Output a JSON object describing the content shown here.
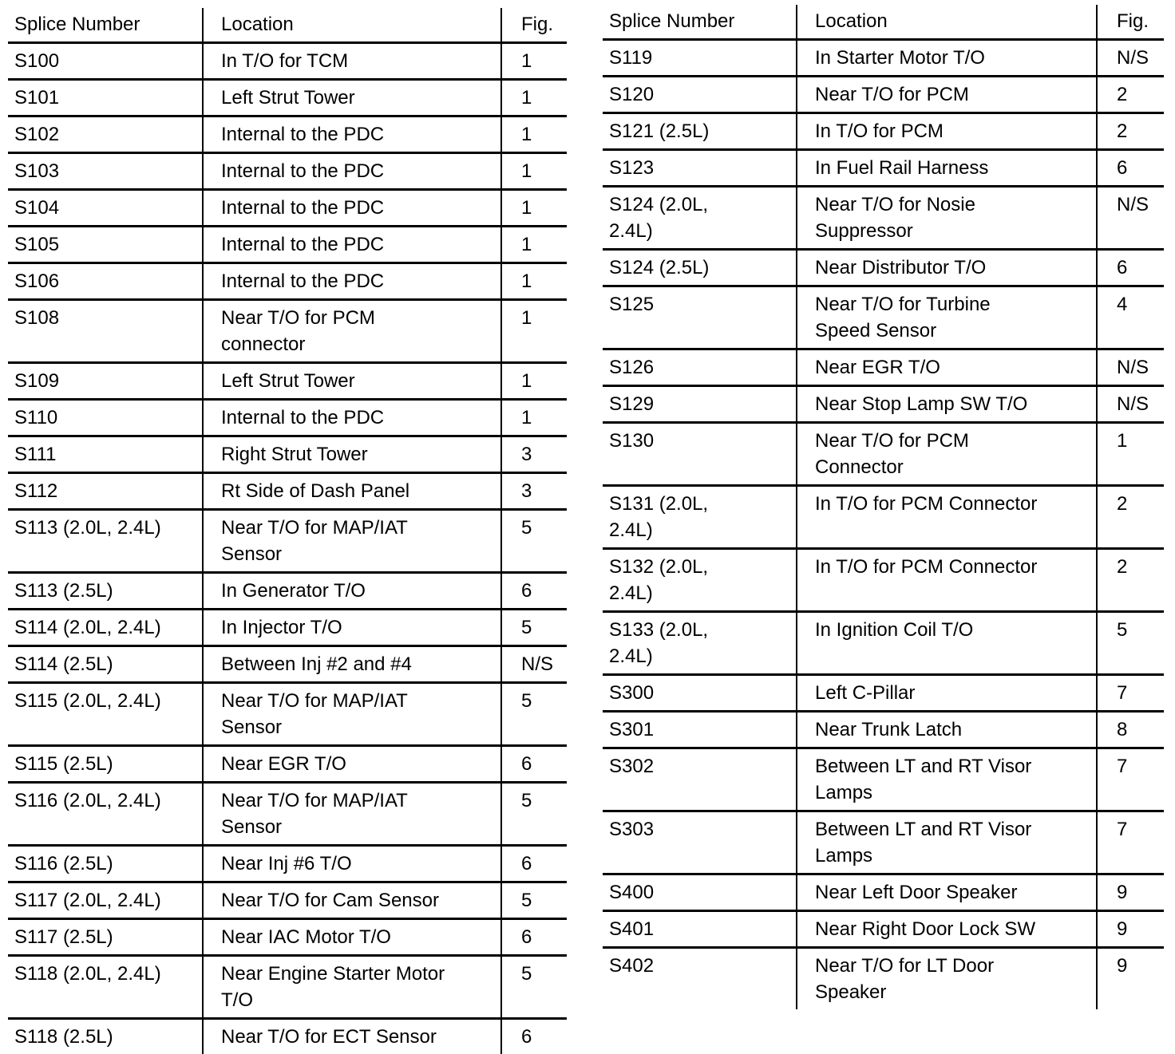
{
  "headers": {
    "splice": "Splice Number",
    "location": "Location",
    "fig": "Fig."
  },
  "left_table": [
    {
      "splice": [
        "S100"
      ],
      "location": [
        "In T/O for TCM"
      ],
      "fig": "1"
    },
    {
      "splice": [
        "S101"
      ],
      "location": [
        "Left Strut Tower"
      ],
      "fig": "1"
    },
    {
      "splice": [
        "S102"
      ],
      "location": [
        "Internal to the PDC"
      ],
      "fig": "1"
    },
    {
      "splice": [
        "S103"
      ],
      "location": [
        "Internal to the PDC"
      ],
      "fig": "1"
    },
    {
      "splice": [
        "S104"
      ],
      "location": [
        "Internal to the PDC"
      ],
      "fig": "1"
    },
    {
      "splice": [
        "S105"
      ],
      "location": [
        "Internal to the PDC"
      ],
      "fig": "1"
    },
    {
      "splice": [
        "S106"
      ],
      "location": [
        "Internal to the PDC"
      ],
      "fig": "1"
    },
    {
      "splice": [
        "S108"
      ],
      "location": [
        "Near T/O for PCM",
        "connector"
      ],
      "fig": "1"
    },
    {
      "splice": [
        "S109"
      ],
      "location": [
        "Left Strut Tower"
      ],
      "fig": "1"
    },
    {
      "splice": [
        "S110"
      ],
      "location": [
        "Internal to the PDC"
      ],
      "fig": "1"
    },
    {
      "splice": [
        "S111"
      ],
      "location": [
        "Right Strut Tower"
      ],
      "fig": "3"
    },
    {
      "splice": [
        "S112"
      ],
      "location": [
        "Rt Side of Dash Panel"
      ],
      "fig": "3"
    },
    {
      "splice": [
        "S113 (2.0L, 2.4L)"
      ],
      "location": [
        "Near T/O for MAP/IAT",
        "Sensor"
      ],
      "fig": "5"
    },
    {
      "splice": [
        "S113 (2.5L)"
      ],
      "location": [
        "In Generator T/O"
      ],
      "fig": "6"
    },
    {
      "splice": [
        "S114 (2.0L, 2.4L)"
      ],
      "location": [
        "In Injector T/O"
      ],
      "fig": "5"
    },
    {
      "splice": [
        "S114 (2.5L)"
      ],
      "location": [
        "Between Inj #2 and #4"
      ],
      "fig": "N/S"
    },
    {
      "splice": [
        "S115 (2.0L, 2.4L)"
      ],
      "location": [
        "Near T/O for MAP/IAT",
        "Sensor"
      ],
      "fig": "5"
    },
    {
      "splice": [
        "S115 (2.5L)"
      ],
      "location": [
        "Near EGR T/O"
      ],
      "fig": "6"
    },
    {
      "splice": [
        "S116 (2.0L, 2.4L)"
      ],
      "location": [
        "Near T/O for MAP/IAT",
        "Sensor"
      ],
      "fig": "5"
    },
    {
      "splice": [
        "S116 (2.5L)"
      ],
      "location": [
        "Near Inj #6 T/O"
      ],
      "fig": "6"
    },
    {
      "splice": [
        "S117 (2.0L, 2.4L)"
      ],
      "location": [
        "Near T/O for Cam Sensor"
      ],
      "fig": "5"
    },
    {
      "splice": [
        "S117 (2.5L)"
      ],
      "location": [
        "Near IAC Motor T/O"
      ],
      "fig": "6"
    },
    {
      "splice": [
        "S118 (2.0L, 2.4L)"
      ],
      "location": [
        "Near Engine Starter Motor",
        "T/O"
      ],
      "fig": "5"
    },
    {
      "splice": [
        "S118 (2.5L)"
      ],
      "location": [
        "Near T/O for ECT Sensor"
      ],
      "fig": "6"
    }
  ],
  "right_table": [
    {
      "splice": [
        "S119"
      ],
      "location": [
        "In Starter Motor T/O"
      ],
      "fig": "N/S"
    },
    {
      "splice": [
        "S120"
      ],
      "location": [
        "Near T/O for PCM"
      ],
      "fig": "2"
    },
    {
      "splice": [
        "S121 (2.5L)"
      ],
      "location": [
        "In T/O for PCM"
      ],
      "fig": "2"
    },
    {
      "splice": [
        "S123"
      ],
      "location": [
        "In Fuel Rail Harness"
      ],
      "fig": "6"
    },
    {
      "splice": [
        "S124 (2.0L,",
        "2.4L)"
      ],
      "location": [
        "Near T/O for Nosie",
        "Suppressor"
      ],
      "fig": "N/S"
    },
    {
      "splice": [
        "S124 (2.5L)"
      ],
      "location": [
        "Near Distributor T/O"
      ],
      "fig": "6"
    },
    {
      "splice": [
        "S125"
      ],
      "location": [
        "Near T/O for Turbine",
        "Speed Sensor"
      ],
      "fig": "4"
    },
    {
      "splice": [
        "S126"
      ],
      "location": [
        "Near EGR T/O"
      ],
      "fig": "N/S"
    },
    {
      "splice": [
        "S129"
      ],
      "location": [
        "Near Stop Lamp SW T/O"
      ],
      "fig": "N/S"
    },
    {
      "splice": [
        "S130"
      ],
      "location": [
        "Near T/O for PCM",
        "Connector"
      ],
      "fig": "1"
    },
    {
      "splice": [
        "S131 (2.0L,",
        "2.4L)"
      ],
      "location": [
        "In T/O for PCM Connector"
      ],
      "fig": "2"
    },
    {
      "splice": [
        "S132 (2.0L,",
        "2.4L)"
      ],
      "location": [
        "In T/O for PCM Connector"
      ],
      "fig": "2"
    },
    {
      "splice": [
        "S133 (2.0L,",
        "2.4L)"
      ],
      "location": [
        "In Ignition Coil T/O"
      ],
      "fig": "5"
    },
    {
      "splice": [
        "S300"
      ],
      "location": [
        "Left C-Pillar"
      ],
      "fig": "7"
    },
    {
      "splice": [
        "S301"
      ],
      "location": [
        "Near Trunk Latch"
      ],
      "fig": "8"
    },
    {
      "splice": [
        "S302"
      ],
      "location": [
        "Between LT and RT Visor",
        "Lamps"
      ],
      "fig": "7"
    },
    {
      "splice": [
        "S303"
      ],
      "location": [
        "Between LT and RT Visor",
        "Lamps"
      ],
      "fig": "7"
    },
    {
      "splice": [
        "S400"
      ],
      "location": [
        "Near Left Door Speaker"
      ],
      "fig": "9"
    },
    {
      "splice": [
        "S401"
      ],
      "location": [
        "Near Right Door Lock SW"
      ],
      "fig": "9"
    },
    {
      "splice": [
        "S402"
      ],
      "location": [
        "Near T/O for LT Door",
        "Speaker"
      ],
      "fig": "9"
    }
  ]
}
